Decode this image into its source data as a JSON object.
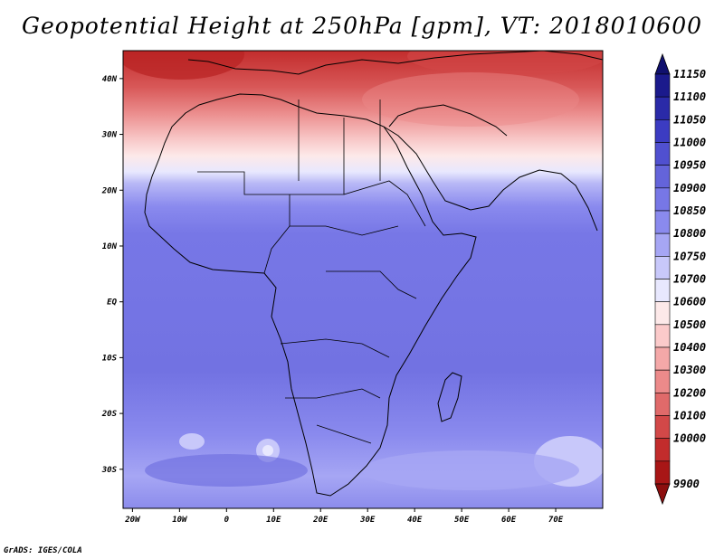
{
  "title": "Geopotential Height at 250hPa [gpm], VT: 2018010600",
  "footer": "GrADS: IGES/COLA",
  "map": {
    "lon_range": [
      -22,
      80
    ],
    "lat_range": [
      -37,
      45
    ],
    "lat_labels": [
      "40N",
      "30N",
      "20N",
      "10N",
      "EQ",
      "10S",
      "20S",
      "30S"
    ],
    "lat_values": [
      40,
      30,
      20,
      10,
      0,
      -10,
      -20,
      -30
    ],
    "lon_labels": [
      "20W",
      "10W",
      "0",
      "10E",
      "20E",
      "30E",
      "40E",
      "50E",
      "60E",
      "70E"
    ],
    "lon_values": [
      -20,
      -10,
      0,
      10,
      20,
      30,
      40,
      50,
      60,
      70
    ]
  },
  "colorbar": {
    "labels": [
      "11150",
      "11100",
      "11050",
      "11000",
      "10950",
      "10900",
      "10850",
      "10800",
      "10750",
      "10700",
      "10600",
      "10500",
      "10400",
      "10300",
      "10200",
      "10100",
      "10000",
      "9900"
    ],
    "colors": [
      "#1b1a8c",
      "#2a2aa8",
      "#3c3cc2",
      "#5050d0",
      "#6464da",
      "#7777e6",
      "#8a8aee",
      "#a6a6f4",
      "#c8c8fa",
      "#e8e8fe",
      "#fde9e9",
      "#fbcaca",
      "#f4a8a8",
      "#ec8a8a",
      "#e06a6a",
      "#d24848",
      "#c22c2c",
      "#a81616"
    ],
    "top_arrow_color": "#10106e",
    "bottom_arrow_color": "#8c0e0e"
  }
}
